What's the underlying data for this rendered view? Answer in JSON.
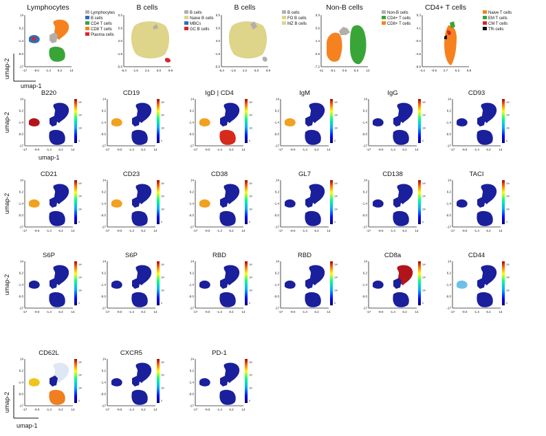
{
  "figure": {
    "axis_x_label": "umap-1",
    "axis_y_label": "umap-2",
    "x_ticks": [
      "-17",
      "-9.0",
      "-1.4",
      "6.2",
      "14"
    ],
    "y_ticks": [
      "14",
      "6.2",
      "-1.4",
      "-9.0",
      "-17"
    ],
    "colorbar_ticks": [
      "10⁴",
      "10³",
      "10²",
      "0"
    ]
  },
  "colors": {
    "grey": "#b3aeac",
    "khaki": "#ded48a",
    "blue": "#2f6db4",
    "green": "#3aa537",
    "orange": "#f5821f",
    "red": "#d6262b",
    "black": "#111111",
    "dark_blue": "#1a1f9c"
  },
  "gating_panels": [
    {
      "title": "Lymphocytes",
      "x_ticks": [
        "-17",
        "-9.0",
        "-1.4",
        "6.2",
        "14"
      ],
      "y_ticks": [
        "14",
        "6.2",
        "-1.4",
        "-9.0",
        "-17"
      ],
      "legend": [
        {
          "label": "Lymphocytes",
          "color": "#b3aeac"
        },
        {
          "label": "B cells",
          "color": "#2f6db4"
        },
        {
          "label": "CD4 T cells",
          "color": "#3aa537"
        },
        {
          "label": "CD8 T cells",
          "color": "#f5821f"
        },
        {
          "label": "Plasma cells",
          "color": "#d6262b"
        }
      ]
    },
    {
      "title": "B cells",
      "x_ticks": [
        "-5.4",
        "-1.6",
        "2.2",
        "6.0",
        "9.9"
      ],
      "y_ticks": [
        "9.6",
        "5.8",
        "2.0",
        "-1.8",
        "-5.6"
      ],
      "legend": [
        {
          "label": "B cells",
          "color": "#b3aeac"
        },
        {
          "label": "Naive B cells",
          "color": "#ded48a"
        },
        {
          "label": "MBCs",
          "color": "#2f6db4"
        },
        {
          "label": "GC B cells",
          "color": "#d6262b"
        }
      ]
    },
    {
      "title": "B cells",
      "x_ticks": [
        "-5.4",
        "-1.6",
        "2.2",
        "6.0",
        "9.9"
      ],
      "y_ticks": [
        "9.6",
        "5.8",
        "2.0",
        "-1.8",
        "-5.6"
      ],
      "legend": [
        {
          "label": "B cells",
          "color": "#b3aeac"
        },
        {
          "label": "FO B cells",
          "color": "#ded48a"
        },
        {
          "label": "MZ B cells",
          "color": "#ded48a"
        }
      ]
    },
    {
      "title": "Non-B cells",
      "x_ticks": [
        "-11",
        "-5.1",
        "0.6",
        "6.3",
        "12"
      ],
      "y_ticks": [
        "9.9",
        "5.6",
        "1.4",
        "-2.9",
        "-7.2"
      ],
      "legend": [
        {
          "label": "Non-B cells",
          "color": "#b3aeac"
        },
        {
          "label": "CD4+ T cells",
          "color": "#3aa537"
        },
        {
          "label": "CD8+ T cells",
          "color": "#f5821f"
        }
      ]
    },
    {
      "title": "CD4+ T cells",
      "x_ticks": [
        "-4.4",
        "-0.9",
        "2.7",
        "6.3",
        "9.8"
      ],
      "y_ticks": [
        "8.3",
        "4.1",
        "-0.2",
        "-4.6",
        "-8.9"
      ],
      "legend": [
        {
          "label": "Naive T cells",
          "color": "#f5821f"
        },
        {
          "label": "EM T cells",
          "color": "#3aa537"
        },
        {
          "label": "CM T cells",
          "color": "#d6262b"
        },
        {
          "label": "Tfh cells",
          "color": "#111111"
        }
      ]
    }
  ],
  "marker_panels": [
    {
      "title": "B220"
    },
    {
      "title": "CD19"
    },
    {
      "title": "IgD | CD4"
    },
    {
      "title": "IgM"
    },
    {
      "title": "IgG"
    },
    {
      "title": "CD93"
    },
    {
      "title": "CD21"
    },
    {
      "title": "CD23"
    },
    {
      "title": "CD38"
    },
    {
      "title": "GL7"
    },
    {
      "title": "CD138"
    },
    {
      "title": "TACI"
    },
    {
      "title": "S6P"
    },
    {
      "title": "S6P"
    },
    {
      "title": "RBD"
    },
    {
      "title": "RBD"
    },
    {
      "title": "CD8a"
    },
    {
      "title": "CD44"
    },
    {
      "title": "CD62L"
    },
    {
      "title": "CXCR5"
    },
    {
      "title": "PD-1"
    }
  ]
}
